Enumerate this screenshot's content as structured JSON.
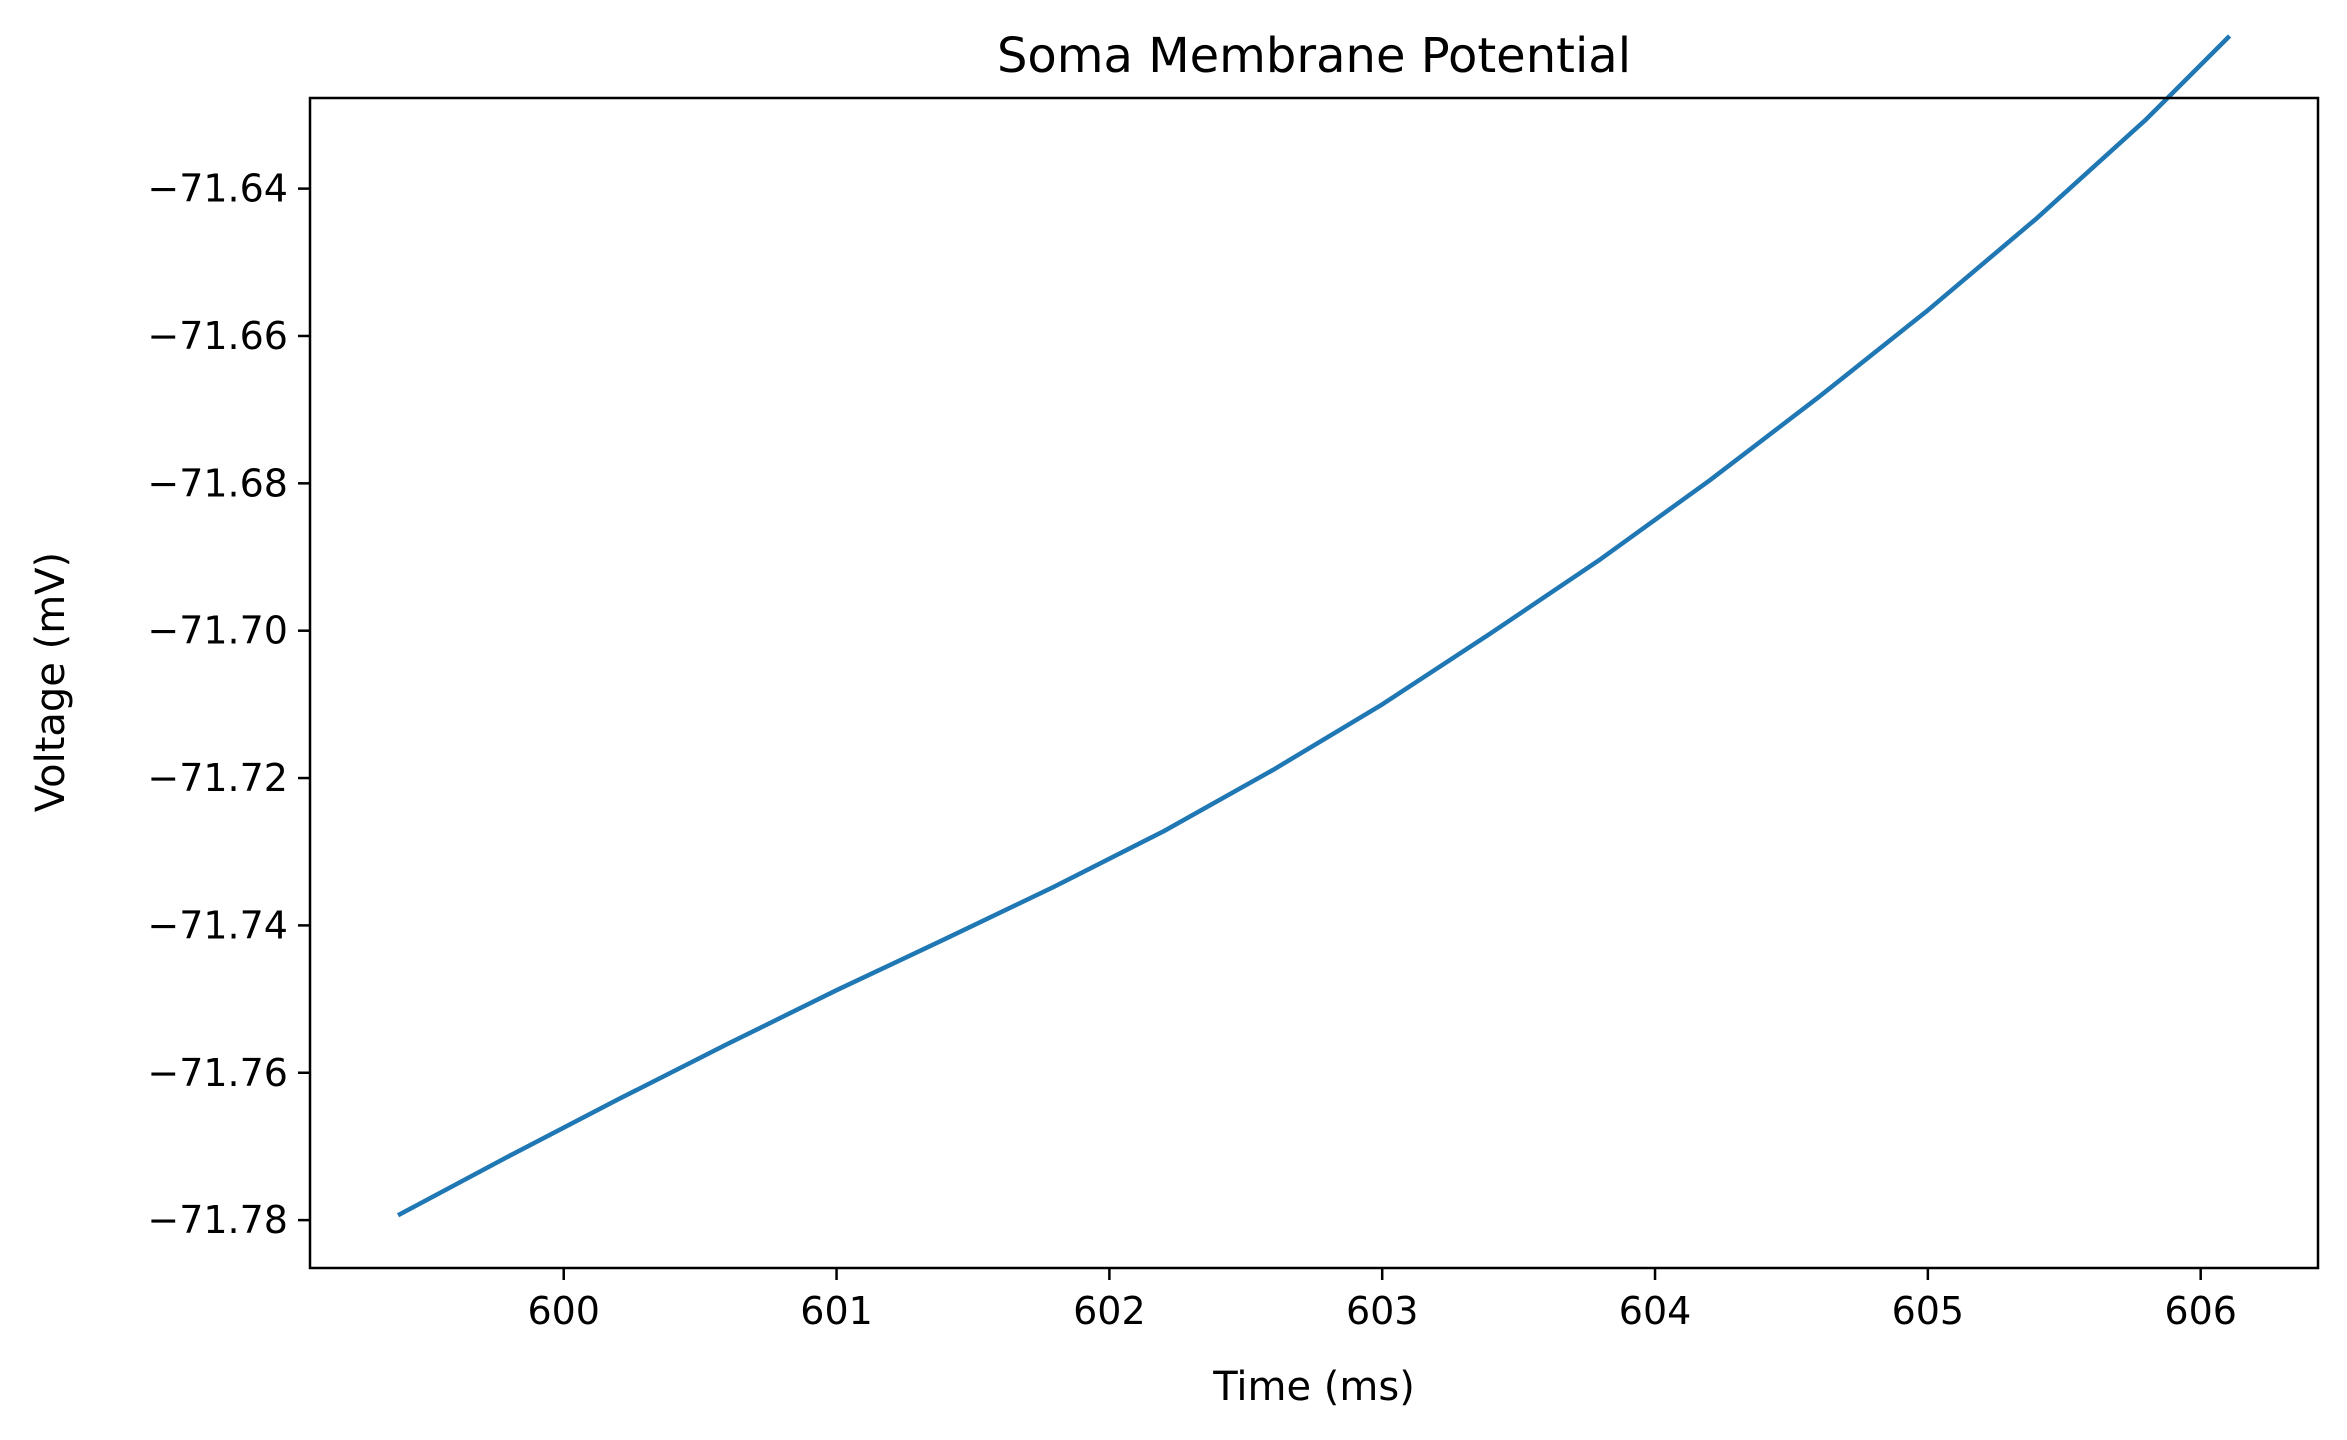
{
  "chart_data": {
    "type": "line",
    "title": "Soma Membrane Potential",
    "xlabel": "Time (ms)",
    "ylabel": "Voltage (mV)",
    "xlim": [
      599.07,
      606.43
    ],
    "ylim": [
      -71.7865,
      -71.6277
    ],
    "x_ticks": [
      600,
      601,
      602,
      603,
      604,
      605,
      606
    ],
    "x_tick_labels": [
      "600",
      "601",
      "602",
      "603",
      "604",
      "605",
      "606"
    ],
    "y_ticks": [
      -71.78,
      -71.76,
      -71.74,
      -71.72,
      -71.7,
      -71.68,
      -71.66,
      -71.64
    ],
    "y_tick_labels": [
      "−71.78",
      "−71.76",
      "−71.74",
      "−71.72",
      "−71.70",
      "−71.68",
      "−71.66",
      "−71.64"
    ],
    "grid": false,
    "legend": false,
    "series": [
      {
        "color": "#1f77b4",
        "x": [
          599.4,
          599.8,
          600.2,
          600.6,
          601.0,
          601.4,
          601.8,
          602.2,
          602.6,
          603.0,
          603.4,
          603.8,
          604.2,
          604.6,
          605.0,
          605.4,
          605.8,
          606.1
        ],
        "y": [
          -71.7792,
          -71.7713,
          -71.7636,
          -71.7561,
          -71.7488,
          -71.7418,
          -71.7347,
          -71.7272,
          -71.7189,
          -71.71,
          -71.7003,
          -71.6903,
          -71.6796,
          -71.6683,
          -71.6565,
          -71.644,
          -71.6306,
          -71.6195
        ]
      }
    ]
  }
}
